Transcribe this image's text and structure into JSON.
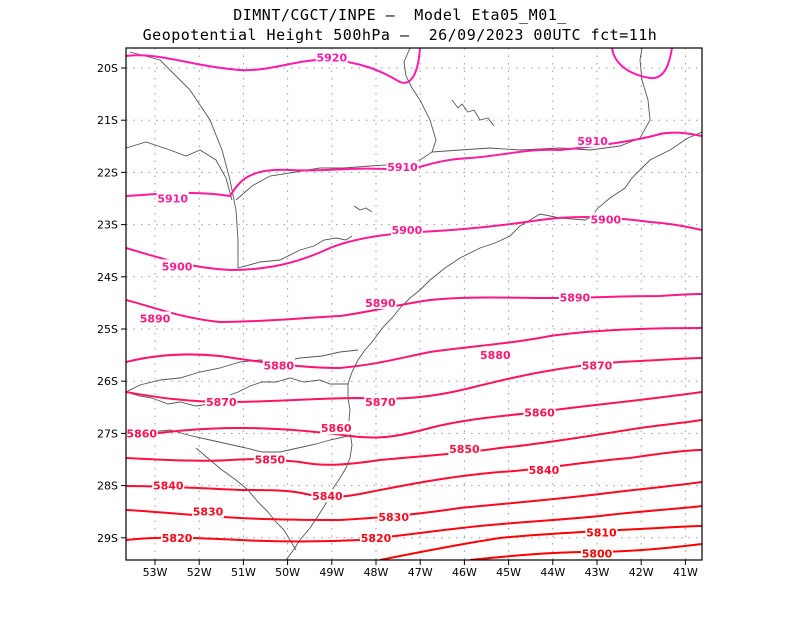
{
  "header": {
    "line1": "DIMNT/CGCT/INPE –  Model Eta05_M01_",
    "line2": "Geopotential Height 500hPa –  26/09/2023 00UTC fct=11h"
  },
  "axes": {
    "lon_labels": [
      "53W",
      "52W",
      "51W",
      "50W",
      "49W",
      "48W",
      "47W",
      "46W",
      "45W",
      "44W",
      "43W",
      "42W",
      "41W"
    ],
    "lat_labels": [
      "20S",
      "21S",
      "22S",
      "23S",
      "24S",
      "25S",
      "26S",
      "27S",
      "28S",
      "29S"
    ]
  },
  "colors": {
    "frame": "#000000",
    "grid": "#9a9a9a",
    "coast": "#555555",
    "contour_high": "#ff1493",
    "contour_mid": "#ff1466",
    "contour_low": "#ff0000"
  },
  "contours": [
    {
      "label": "5920",
      "color": "#ff1bb0",
      "label_pos": [
        [
          -49.0,
          -19.8
        ]
      ]
    },
    {
      "label": "5910",
      "color": "#ff1a9e",
      "label_pos": [
        [
          -52.6,
          -22.5
        ],
        [
          -47.4,
          -21.9
        ],
        [
          -43.1,
          -21.4
        ]
      ]
    },
    {
      "label": "5900",
      "color": "#ff1a8f",
      "label_pos": [
        [
          -52.5,
          -23.8
        ],
        [
          -47.3,
          -23.1
        ],
        [
          -42.8,
          -22.9
        ]
      ]
    },
    {
      "label": "5890",
      "color": "#ff177f",
      "label_pos": [
        [
          -53.0,
          -24.8
        ],
        [
          -47.9,
          -24.5
        ],
        [
          -43.5,
          -24.4
        ]
      ]
    },
    {
      "label": "5880",
      "color": "#ff1670",
      "label_pos": [
        [
          -50.2,
          -25.7
        ],
        [
          -45.3,
          -25.5
        ]
      ]
    },
    {
      "label": "5870",
      "color": "#ff1460",
      "label_pos": [
        [
          -51.5,
          -26.4
        ],
        [
          -47.9,
          -26.4
        ],
        [
          -43.0,
          -25.7
        ]
      ]
    },
    {
      "label": "5860",
      "color": "#ff1250",
      "label_pos": [
        [
          -53.3,
          -27.0
        ],
        [
          -48.9,
          -26.9
        ],
        [
          -44.3,
          -26.6
        ]
      ]
    },
    {
      "label": "5850",
      "color": "#ff1040",
      "label_pos": [
        [
          -50.4,
          -27.5
        ],
        [
          -46.0,
          -27.3
        ]
      ]
    },
    {
      "label": "5840",
      "color": "#ff0c30",
      "label_pos": [
        [
          -52.7,
          -28.0
        ],
        [
          -49.1,
          -28.2
        ],
        [
          -44.2,
          -27.7
        ]
      ]
    },
    {
      "label": "5830",
      "color": "#ff0820",
      "label_pos": [
        [
          -51.8,
          -28.5
        ],
        [
          -47.6,
          -28.6
        ]
      ]
    },
    {
      "label": "5820",
      "color": "#ff0412",
      "label_pos": [
        [
          -52.5,
          -29.0
        ],
        [
          -48.0,
          -29.0
        ]
      ]
    },
    {
      "label": "5810",
      "color": "#ff0000",
      "label_pos": [
        [
          -42.9,
          -28.9
        ]
      ]
    },
    {
      "label": "5800",
      "color": "#ff0000",
      "label_pos": [
        [
          -43.0,
          -29.3
        ]
      ]
    }
  ]
}
